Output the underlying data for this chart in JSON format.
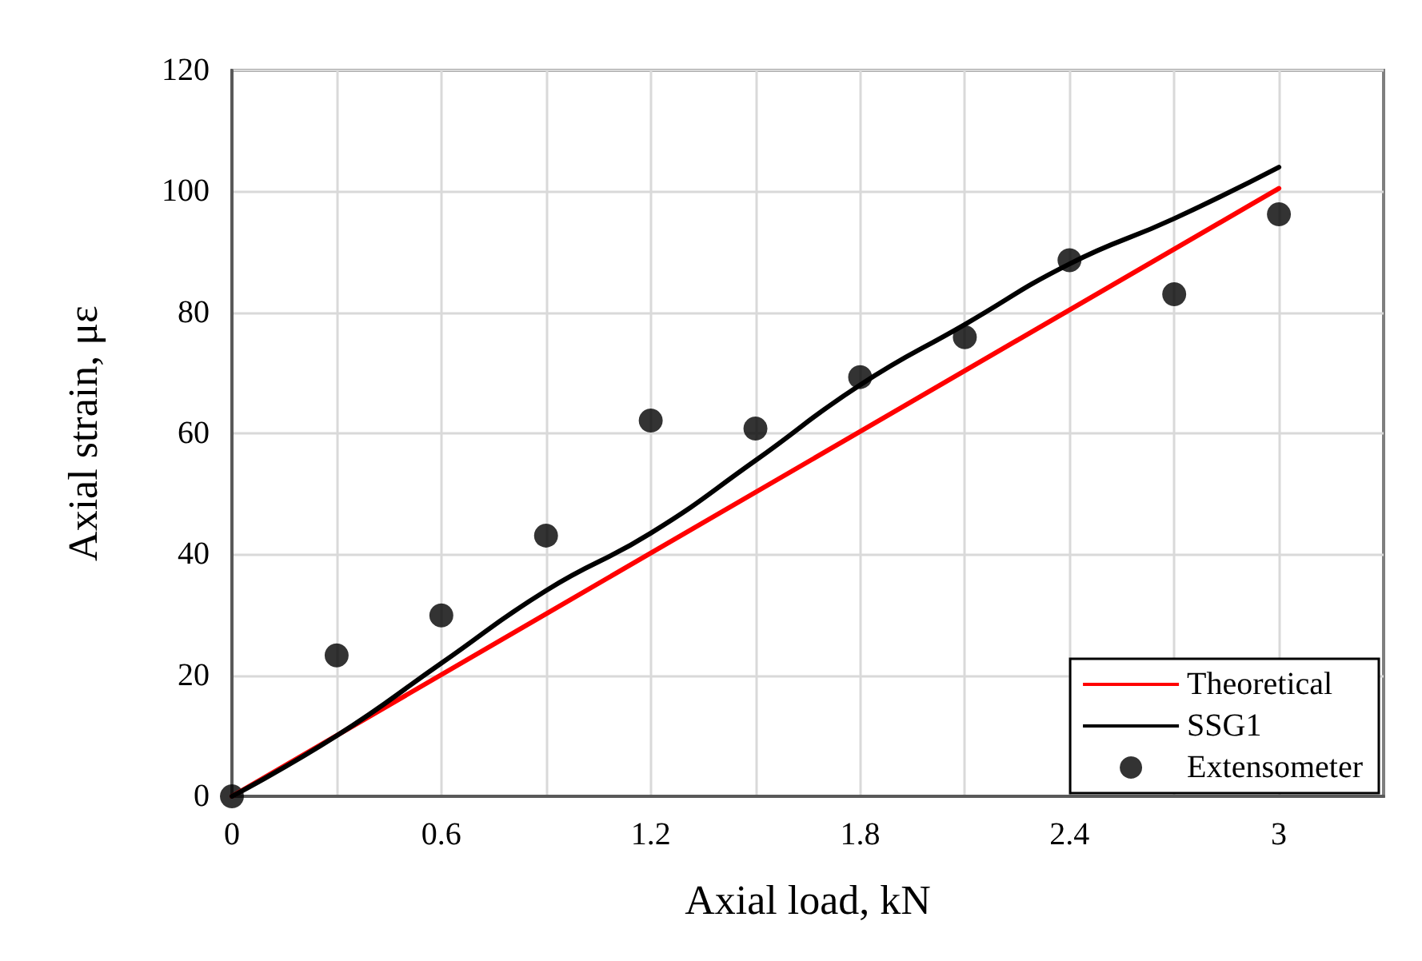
{
  "chart_data": {
    "type": "line",
    "xlabel": "Axial load, kN",
    "ylabel": "Axial strain, με",
    "xlim": [
      0,
      3.3
    ],
    "ylim": [
      0,
      120
    ],
    "xticks": [
      0,
      {
        "value": 0.3,
        "label": null
      },
      0.6,
      {
        "value": 0.9,
        "label": null
      },
      1.2,
      {
        "value": 1.5,
        "label": null
      },
      1.8,
      {
        "value": 2.1,
        "label": null
      },
      2.4,
      {
        "value": 2.7,
        "label": null
      },
      3
    ],
    "yticks": [
      0,
      20,
      40,
      60,
      80,
      100,
      120
    ],
    "grid": true,
    "legend": "bottom right",
    "series": [
      {
        "name": "Theoretical",
        "type": "line",
        "color": "#ff0000",
        "marker": "none",
        "x": [
          0,
          3
        ],
        "values": [
          0,
          100.5
        ]
      },
      {
        "name": "SSG1",
        "type": "line",
        "color": "#000000",
        "marker": "none",
        "x": [
          0,
          0.3,
          0.6,
          0.9,
          1.2,
          1.5,
          1.8,
          2.1,
          2.4,
          2.7,
          3
        ],
        "values": [
          0,
          10,
          22,
          34,
          43.5,
          55.5,
          68,
          78,
          88,
          95.5,
          104
        ]
      },
      {
        "name": "Extensometer",
        "type": "scatter",
        "color": "#000000",
        "marker": "circle",
        "x": [
          0,
          0.3,
          0.6,
          0.9,
          1.2,
          1.5,
          1.8,
          2.1,
          2.4,
          2.7,
          3
        ],
        "values": [
          0,
          23.3,
          29.9,
          43.1,
          62.1,
          60.8,
          69.3,
          75.9,
          88.6,
          83,
          96.2
        ]
      }
    ]
  }
}
